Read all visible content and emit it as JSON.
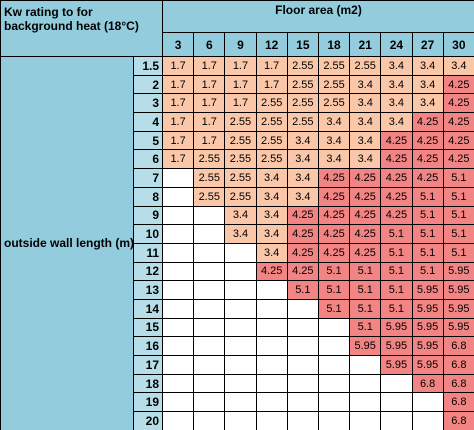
{
  "header": {
    "title": "Kw rating to for background heat (18°C)",
    "column_title": "Floor area (m2)",
    "columns": [
      3,
      6,
      9,
      12,
      15,
      18,
      21,
      24,
      27,
      30
    ]
  },
  "row_title": "outside wall length (m)",
  "colors": {
    "1.7": "#fbc7a9",
    "2.55": "#fbc7a9",
    "3.4": "#fbc7a9",
    "4.25": "#f38484",
    "5.1": "#f38484",
    "5.95": "#f38484",
    "6.8": "#f38484"
  },
  "rows": [
    {
      "label": 1.5,
      "values": [
        1.7,
        1.7,
        1.7,
        1.7,
        2.55,
        2.55,
        2.55,
        3.4,
        3.4,
        3.4
      ]
    },
    {
      "label": 2,
      "values": [
        1.7,
        1.7,
        1.7,
        1.7,
        2.55,
        2.55,
        3.4,
        3.4,
        3.4,
        4.25
      ]
    },
    {
      "label": 3,
      "values": [
        1.7,
        1.7,
        1.7,
        2.55,
        2.55,
        2.55,
        3.4,
        3.4,
        3.4,
        4.25
      ]
    },
    {
      "label": 4,
      "values": [
        1.7,
        1.7,
        2.55,
        2.55,
        2.55,
        3.4,
        3.4,
        3.4,
        4.25,
        4.25
      ]
    },
    {
      "label": 5,
      "values": [
        1.7,
        1.7,
        2.55,
        2.55,
        3.4,
        3.4,
        3.4,
        4.25,
        4.25,
        4.25
      ]
    },
    {
      "label": 6,
      "values": [
        1.7,
        2.55,
        2.55,
        2.55,
        3.4,
        3.4,
        3.4,
        4.25,
        4.25,
        4.25
      ]
    },
    {
      "label": 7,
      "values": [
        null,
        2.55,
        2.55,
        3.4,
        3.4,
        4.25,
        4.25,
        4.25,
        4.25,
        5.1
      ]
    },
    {
      "label": 8,
      "values": [
        null,
        2.55,
        2.55,
        3.4,
        3.4,
        4.25,
        4.25,
        4.25,
        5.1,
        5.1
      ]
    },
    {
      "label": 9,
      "values": [
        null,
        null,
        3.4,
        3.4,
        4.25,
        4.25,
        4.25,
        4.25,
        5.1,
        5.1
      ]
    },
    {
      "label": 10,
      "values": [
        null,
        null,
        3.4,
        3.4,
        4.25,
        4.25,
        4.25,
        5.1,
        5.1,
        5.1
      ]
    },
    {
      "label": 11,
      "values": [
        null,
        null,
        null,
        3.4,
        4.25,
        4.25,
        4.25,
        5.1,
        5.1,
        5.1
      ]
    },
    {
      "label": 12,
      "values": [
        null,
        null,
        null,
        4.25,
        4.25,
        5.1,
        5.1,
        5.1,
        5.1,
        5.95
      ]
    },
    {
      "label": 13,
      "values": [
        null,
        null,
        null,
        null,
        5.1,
        5.1,
        5.1,
        5.1,
        5.95,
        5.95
      ]
    },
    {
      "label": 14,
      "values": [
        null,
        null,
        null,
        null,
        null,
        5.1,
        5.1,
        5.1,
        5.95,
        5.95
      ]
    },
    {
      "label": 15,
      "values": [
        null,
        null,
        null,
        null,
        null,
        null,
        5.1,
        5.95,
        5.95,
        5.95
      ]
    },
    {
      "label": 16,
      "values": [
        null,
        null,
        null,
        null,
        null,
        null,
        5.95,
        5.95,
        5.95,
        6.8
      ]
    },
    {
      "label": 17,
      "values": [
        null,
        null,
        null,
        null,
        null,
        null,
        null,
        5.95,
        5.95,
        6.8
      ]
    },
    {
      "label": 18,
      "values": [
        null,
        null,
        null,
        null,
        null,
        null,
        null,
        null,
        6.8,
        6.8
      ]
    },
    {
      "label": 19,
      "values": [
        null,
        null,
        null,
        null,
        null,
        null,
        null,
        null,
        null,
        6.8
      ]
    },
    {
      "label": 20,
      "values": [
        null,
        null,
        null,
        null,
        null,
        null,
        null,
        null,
        null,
        6.8
      ]
    }
  ]
}
